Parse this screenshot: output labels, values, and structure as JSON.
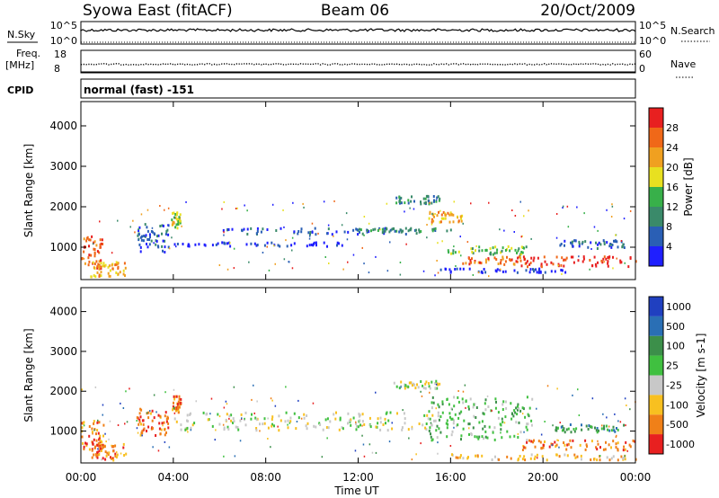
{
  "header": {
    "station": "Syowa East (fitACF)",
    "beam": "Beam 06",
    "date": "20/Oct/2009"
  },
  "top_panels": {
    "nsky": {
      "label": "N.Sky",
      "ticks": [
        "10^5",
        "10^0"
      ]
    },
    "nsearch": {
      "label": "N.Search",
      "ticks": [
        "10^5",
        "10^0"
      ]
    },
    "freq": {
      "label_line1": "Freq.",
      "label_line2": "[MHz]",
      "ticks": [
        "18",
        "8"
      ],
      "value_mhz": 11.8
    },
    "nave": {
      "label": "Nave",
      "ticks": [
        "60",
        "0"
      ]
    },
    "cpid": {
      "label": "CPID",
      "value": "normal (fast) -151"
    }
  },
  "chart_data": [
    {
      "type": "heatmap",
      "quantity": "Power",
      "ylabel": "Slant Range [km]",
      "ylim": [
        200,
        4600
      ],
      "yticks": [
        "1000",
        "2000",
        "3000",
        "4000"
      ],
      "x_range_hours": [
        0,
        24
      ],
      "colorbar": {
        "label": "Power [dB]",
        "ticks": [
          "4",
          "8",
          "12",
          "16",
          "20",
          "24",
          "28"
        ],
        "colors": [
          "#1f1fff",
          "#2a5fb5",
          "#3a8a6a",
          "#38b04a",
          "#e8e020",
          "#f0a020",
          "#f06818",
          "#e82020"
        ]
      },
      "echo_regions": [
        {
          "t0": 0.0,
          "t1": 0.9,
          "r0": 500,
          "r1": 1300,
          "level": 6
        },
        {
          "t0": 0.4,
          "t1": 2.0,
          "r0": 300,
          "r1": 700,
          "level": 5
        },
        {
          "t0": 2.4,
          "t1": 3.8,
          "r0": 900,
          "r1": 1600,
          "level": 1
        },
        {
          "t0": 3.9,
          "t1": 4.3,
          "r0": 1500,
          "r1": 1900,
          "level": 4
        },
        {
          "t0": 4.0,
          "t1": 11.5,
          "r0": 1050,
          "r1": 1150,
          "level": 0
        },
        {
          "t0": 6.0,
          "t1": 14.5,
          "r0": 1350,
          "r1": 1500,
          "level": 1
        },
        {
          "t0": 12.0,
          "t1": 16.0,
          "r0": 1400,
          "r1": 1500,
          "level": 2
        },
        {
          "t0": 13.5,
          "t1": 15.5,
          "r0": 2100,
          "r1": 2300,
          "level": 2
        },
        {
          "t0": 15.0,
          "t1": 16.5,
          "r0": 1650,
          "r1": 1900,
          "level": 5
        },
        {
          "t0": 15.8,
          "t1": 19.5,
          "r0": 850,
          "r1": 1050,
          "level": 3
        },
        {
          "t0": 16.5,
          "t1": 19.5,
          "r0": 600,
          "r1": 800,
          "level": 6
        },
        {
          "t0": 19.0,
          "t1": 24.0,
          "r0": 550,
          "r1": 800,
          "level": 7
        },
        {
          "t0": 15.5,
          "t1": 21.0,
          "r0": 400,
          "r1": 500,
          "level": 0
        },
        {
          "t0": 20.5,
          "t1": 23.5,
          "r0": 1000,
          "r1": 1200,
          "level": 1
        }
      ]
    },
    {
      "type": "heatmap",
      "quantity": "Velocity",
      "ylabel": "Slant Range [km]",
      "ylim": [
        200,
        4600
      ],
      "yticks": [
        "1000",
        "2000",
        "3000",
        "4000"
      ],
      "x_range_hours": [
        0,
        24
      ],
      "colorbar": {
        "label": "Velocity [m s-1]",
        "ticks": [
          "1000",
          "500",
          "100",
          "25",
          "-25",
          "-100",
          "-500",
          "-1000"
        ],
        "colors": [
          "#2040c0",
          "#2a6fb5",
          "#3c8f4a",
          "#40c040",
          "#c8c8c8",
          "#f8c020",
          "#f08018",
          "#e82020"
        ]
      },
      "echo_regions": [
        {
          "t0": 0.0,
          "t1": 1.0,
          "r0": 500,
          "r1": 1300,
          "level": 6
        },
        {
          "t0": 0.4,
          "t1": 2.0,
          "r0": 300,
          "r1": 700,
          "level": 6
        },
        {
          "t0": 2.4,
          "t1": 3.8,
          "r0": 900,
          "r1": 1600,
          "level": 6
        },
        {
          "t0": 3.9,
          "t1": 4.3,
          "r0": 1500,
          "r1": 1900,
          "level": 6
        },
        {
          "t0": 4.0,
          "t1": 15.5,
          "r0": 1050,
          "r1": 1500,
          "level": 4
        },
        {
          "t0": 13.5,
          "t1": 15.5,
          "r0": 2100,
          "r1": 2300,
          "level": 4
        },
        {
          "t0": 15.0,
          "t1": 19.5,
          "r0": 800,
          "r1": 1900,
          "level": 3
        },
        {
          "t0": 16.0,
          "t1": 24.0,
          "r0": 300,
          "r1": 450,
          "level": 5
        },
        {
          "t0": 19.0,
          "t1": 24.0,
          "r0": 550,
          "r1": 800,
          "level": 6
        },
        {
          "t0": 20.5,
          "t1": 23.5,
          "r0": 1000,
          "r1": 1200,
          "level": 2
        }
      ]
    }
  ],
  "x_axis": {
    "label": "Time UT",
    "ticks": [
      "00:00",
      "04:00",
      "08:00",
      "12:00",
      "16:00",
      "20:00",
      "00:00"
    ]
  }
}
